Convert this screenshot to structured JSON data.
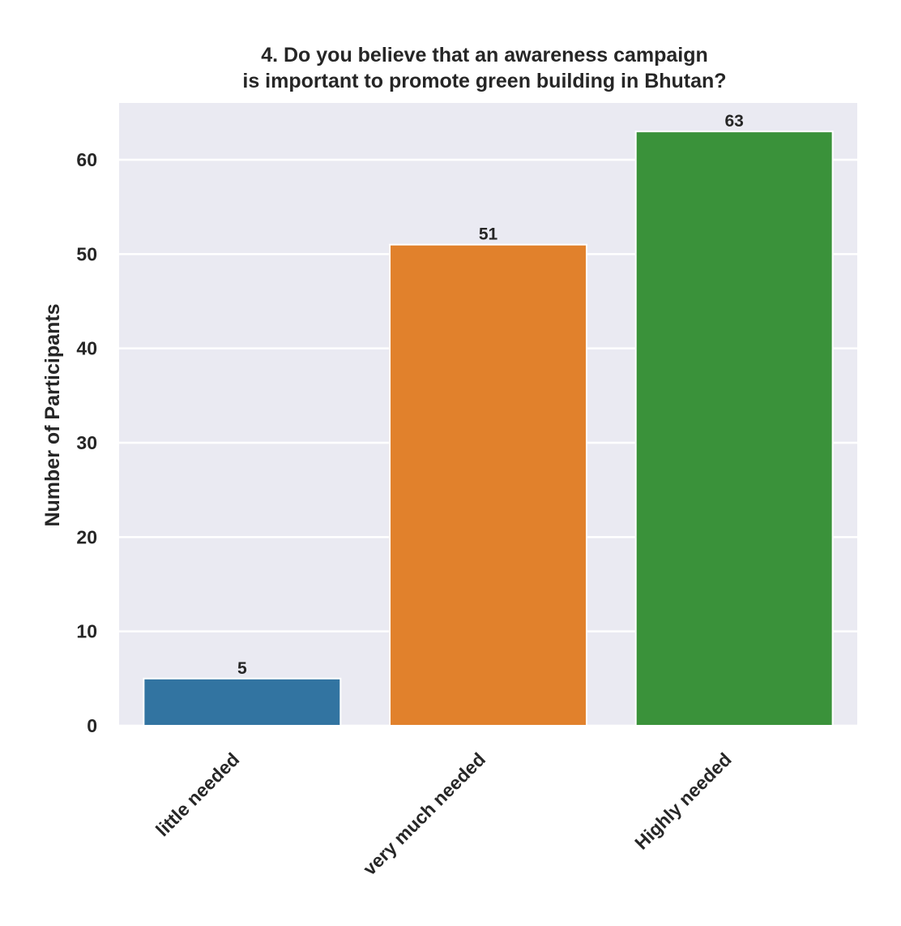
{
  "chart_data": {
    "type": "bar",
    "title_lines": [
      "4. Do you believe that an awareness campaign",
      "is important to promote green building in Bhutan?"
    ],
    "xlabel": "",
    "ylabel": "Number of Participants",
    "categories": [
      "little needed",
      "very much needed",
      "Highly needed"
    ],
    "values": [
      5,
      51,
      63
    ],
    "value_labels": [
      "5",
      "51",
      "63"
    ],
    "colors": [
      "#3274a1",
      "#e1812c",
      "#3a923a"
    ],
    "ylim": [
      0,
      66
    ],
    "yticks": [
      0,
      10,
      20,
      30,
      40,
      50,
      60
    ],
    "ytick_labels": [
      "0",
      "10",
      "20",
      "30",
      "40",
      "50",
      "60"
    ],
    "grid": true,
    "background_color": "#eaeaf2"
  }
}
